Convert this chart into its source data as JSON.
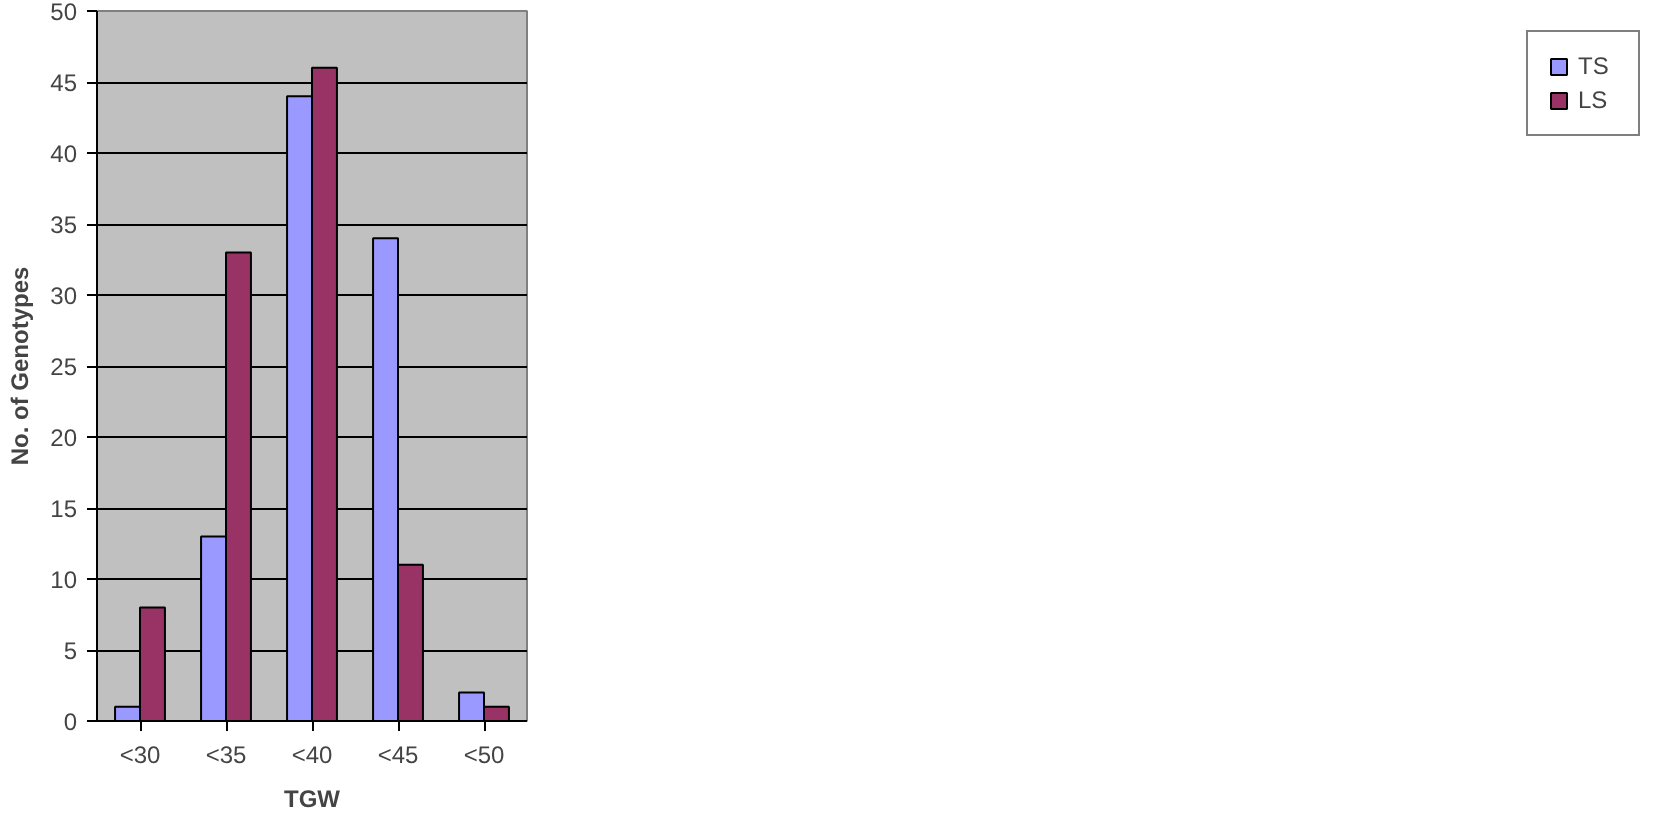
{
  "chart_data": {
    "type": "bar",
    "xlabel": "TGW",
    "ylabel": "No. of Genotypes",
    "categories": [
      "<30",
      "<35",
      "<40",
      "<45",
      "<50"
    ],
    "series": [
      {
        "name": "TS",
        "color": "#9999ff",
        "values": [
          1,
          13,
          44,
          34,
          2
        ]
      },
      {
        "name": "LS",
        "color": "#993366",
        "values": [
          8,
          33,
          46,
          11,
          1
        ]
      }
    ],
    "ylim": [
      0,
      50
    ],
    "yticks": [
      0,
      5,
      10,
      15,
      20,
      25,
      30,
      35,
      40,
      45,
      50
    ],
    "grid": "y",
    "legend": "right"
  }
}
